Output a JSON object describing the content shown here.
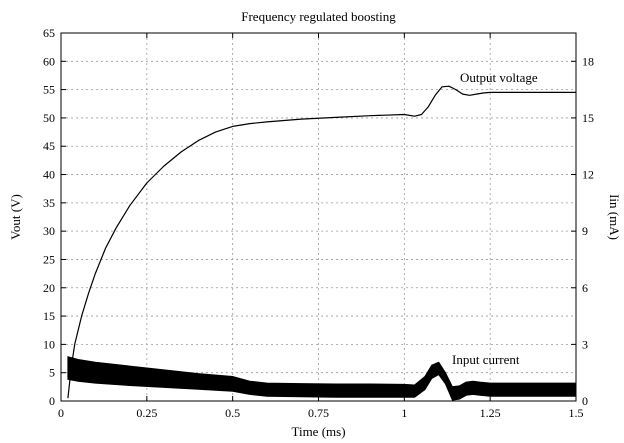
{
  "chart_data": {
    "type": "line",
    "title": "Frequency regulated boosting",
    "xlabel": "Time (ms)",
    "ylabel": "Vout (V)",
    "y2label": "Iin (mA)",
    "xlim": [
      0,
      1.5
    ],
    "ylim": [
      0,
      65
    ],
    "y2lim": [
      0,
      19.5
    ],
    "grid": true,
    "x_ticks": [
      0,
      0.25,
      0.5,
      0.75,
      1,
      1.25,
      1.5
    ],
    "x_tick_labels": [
      "0",
      "0.25",
      "0.5",
      "0.75",
      "1",
      "1.25",
      "1.5"
    ],
    "y_ticks": [
      0,
      5,
      10,
      15,
      20,
      25,
      30,
      35,
      40,
      45,
      50,
      55,
      60,
      65
    ],
    "y_tick_labels": [
      "0",
      "5",
      "10",
      "15",
      "20",
      "25",
      "30",
      "35",
      "40",
      "45",
      "50",
      "55",
      "60",
      "65"
    ],
    "y2_ticks": [
      0,
      3,
      6,
      9,
      12,
      15,
      18
    ],
    "y2_tick_labels": [
      "0",
      "3",
      "6",
      "9",
      "12",
      "15",
      "18"
    ],
    "annotations": [
      {
        "text": "Output voltage",
        "series": "output_voltage"
      },
      {
        "text": "Input current",
        "series": "input_current"
      }
    ],
    "series": [
      {
        "key": "output_voltage",
        "axis": "left",
        "color": "#000000",
        "x": [
          0.02,
          0.03,
          0.04,
          0.06,
          0.08,
          0.1,
          0.13,
          0.16,
          0.2,
          0.25,
          0.3,
          0.35,
          0.4,
          0.45,
          0.5,
          0.55,
          0.6,
          0.7,
          0.8,
          0.9,
          1.0,
          1.03,
          1.05,
          1.07,
          1.09,
          1.11,
          1.13,
          1.15,
          1.17,
          1.19,
          1.21,
          1.23,
          1.25,
          1.3,
          1.4,
          1.5
        ],
        "values": [
          0.5,
          6,
          10,
          15,
          19,
          22.5,
          27,
          30.5,
          34.5,
          38.5,
          41.5,
          44,
          46,
          47.5,
          48.5,
          49,
          49.3,
          49.8,
          50.1,
          50.4,
          50.6,
          50.3,
          50.6,
          52,
          54,
          55.5,
          55.6,
          55,
          54.2,
          54,
          54.2,
          54.4,
          54.5,
          54.5,
          54.5,
          54.5
        ]
      },
      {
        "key": "input_current",
        "axis": "right",
        "color": "#000000",
        "band": true,
        "x": [
          0.02,
          0.05,
          0.1,
          0.2,
          0.3,
          0.4,
          0.5,
          0.55,
          0.6,
          0.7,
          0.8,
          0.9,
          1.0,
          1.03,
          1.06,
          1.08,
          1.1,
          1.12,
          1.14,
          1.16,
          1.18,
          1.2,
          1.22,
          1.25,
          1.3,
          1.4,
          1.5
        ],
        "upper": [
          2.35,
          2.2,
          2.05,
          1.85,
          1.65,
          1.45,
          1.3,
          1.05,
          0.95,
          0.92,
          0.9,
          0.9,
          0.88,
          0.85,
          1.3,
          1.9,
          2.05,
          1.5,
          0.75,
          0.8,
          1.0,
          1.05,
          1.0,
          0.95,
          0.95,
          0.95,
          0.95
        ],
        "lower": [
          1.15,
          1.05,
          0.95,
          0.82,
          0.72,
          0.62,
          0.52,
          0.35,
          0.25,
          0.22,
          0.2,
          0.2,
          0.2,
          0.2,
          0.6,
          1.2,
          1.4,
          0.9,
          0.05,
          0.1,
          0.3,
          0.35,
          0.3,
          0.25,
          0.25,
          0.25,
          0.25
        ]
      }
    ]
  }
}
